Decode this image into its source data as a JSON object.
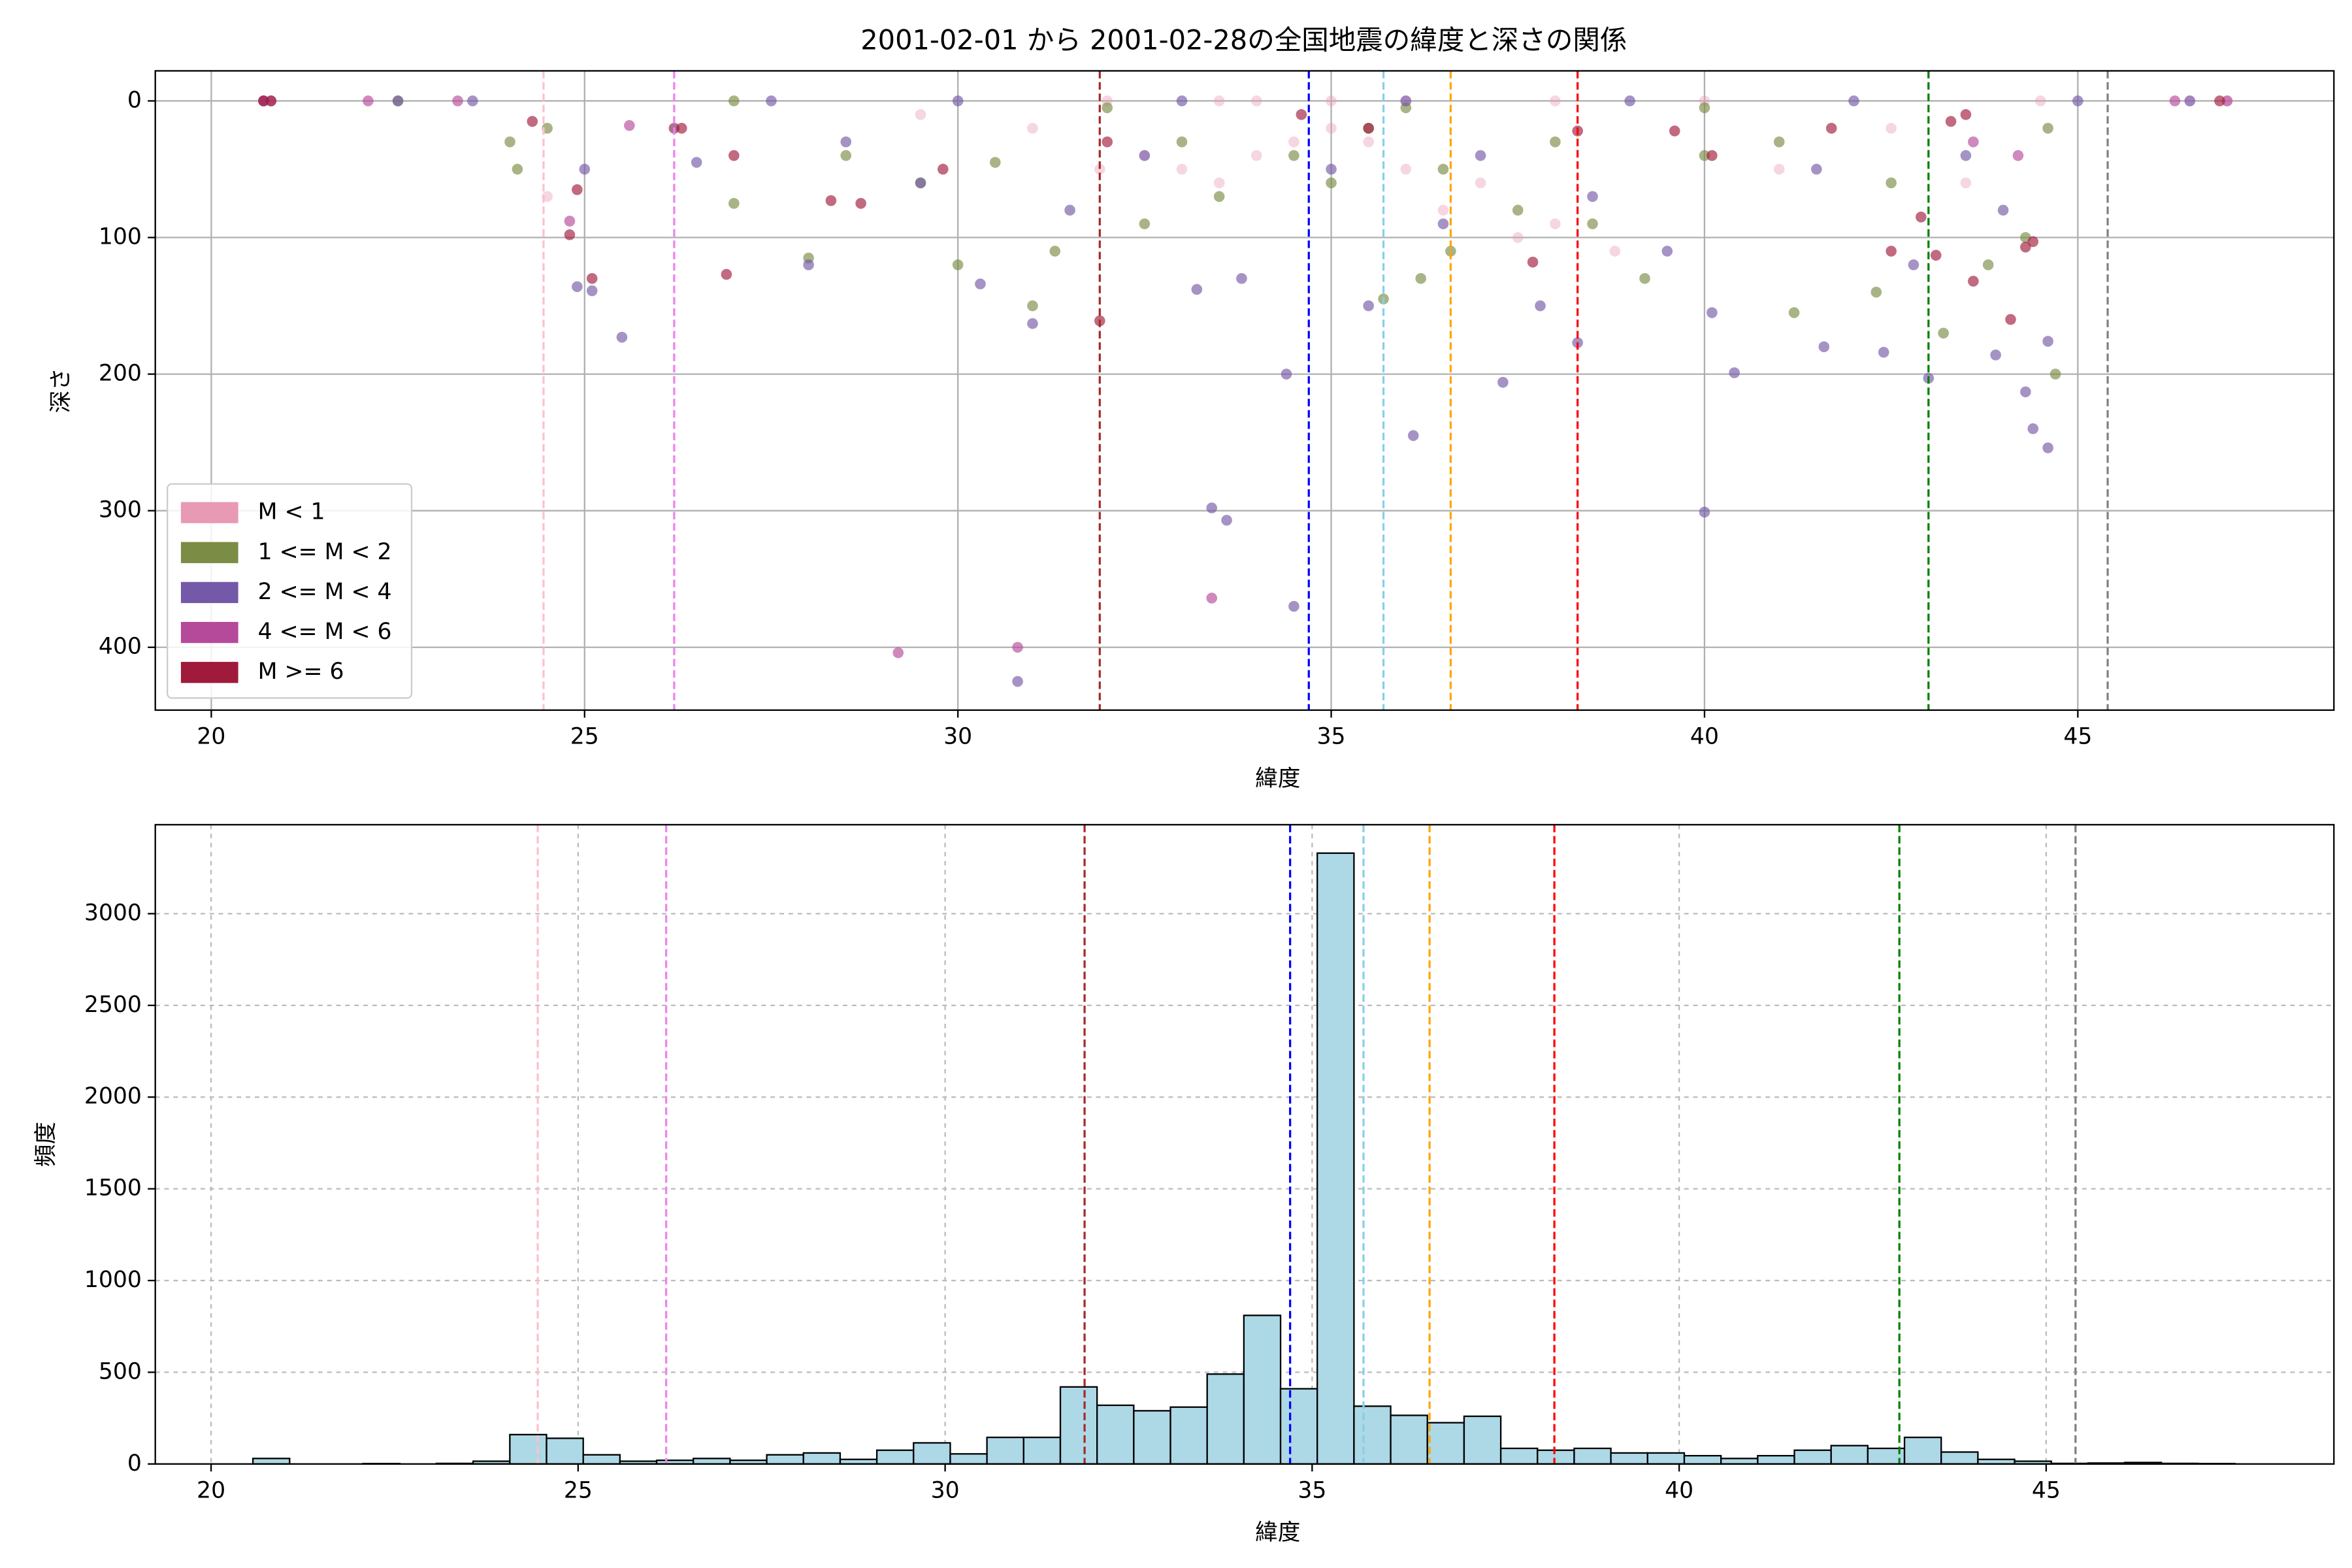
{
  "chart_data": [
    {
      "type": "scatter",
      "title": "2001-02-01 から 2001-02-28の全国地震の緯度と深さの関係",
      "x_label": "緯度",
      "y_label": "深さ",
      "xlim": [
        19.25,
        48.43
      ],
      "ylim": [
        446,
        -22
      ],
      "xticks": [
        20,
        25,
        30,
        35,
        40,
        45
      ],
      "yticks": [
        0,
        100,
        200,
        300,
        400
      ],
      "grid": true,
      "grid_style": "solid",
      "legend": "lower left",
      "vlines": [
        {
          "x": 24.45,
          "color": "pink"
        },
        {
          "x": 26.2,
          "color": "violet"
        },
        {
          "x": 31.9,
          "color": "brown"
        },
        {
          "x": 34.7,
          "color": "blue"
        },
        {
          "x": 35.7,
          "color": "skyblue"
        },
        {
          "x": 36.6,
          "color": "orange"
        },
        {
          "x": 38.3,
          "color": "red"
        },
        {
          "x": 43.0,
          "color": "green"
        },
        {
          "x": 45.4,
          "color": "gray"
        }
      ],
      "series": [
        {
          "name": "M < 1",
          "color": "#e899b4",
          "x": [
            31.9,
            32.5,
            33,
            33.5,
            34,
            34.5,
            35,
            35.5,
            36,
            36.5,
            37,
            37.5,
            38,
            38.8,
            33.5,
            34,
            35,
            36,
            32,
            38,
            40,
            44.5,
            46.5,
            47,
            24.5,
            41,
            42.5,
            43.5,
            31,
            29.5
          ],
          "values": [
            50,
            40,
            50,
            60,
            40,
            30,
            20,
            30,
            50,
            80,
            60,
            100,
            90,
            110,
            0,
            0,
            0,
            0,
            0,
            0,
            0,
            0,
            0,
            0,
            70,
            50,
            20,
            60,
            20,
            10
          ]
        },
        {
          "name": "1 <= M < 2",
          "color": "#7b8c45",
          "x": [
            24,
            24.5,
            26.2,
            27,
            28,
            29.5,
            30,
            31,
            31.3,
            32.5,
            33.5,
            35,
            35.7,
            36.2,
            36.6,
            37.5,
            38.5,
            39.2,
            40,
            41.2,
            42.3,
            43.2,
            43.8,
            44.3,
            44.6,
            22.5,
            27,
            32,
            36,
            40,
            33,
            34.5,
            35.5,
            36.5,
            38,
            41,
            42.5,
            28.5,
            30.5,
            24.1,
            44.7
          ],
          "values": [
            30,
            20,
            20,
            75,
            115,
            60,
            120,
            150,
            110,
            90,
            70,
            60,
            145,
            130,
            110,
            80,
            90,
            130,
            40,
            155,
            140,
            170,
            120,
            100,
            20,
            0,
            0,
            5,
            5,
            5,
            30,
            40,
            20,
            50,
            30,
            30,
            60,
            40,
            45,
            50,
            200
          ]
        },
        {
          "name": "2 <= M < 4",
          "color": "#7459a8",
          "x": [
            34.4,
            34.5,
            33.4,
            33.6,
            30.8,
            40,
            36.1,
            44.6,
            44.4,
            44.3,
            44.6,
            43.9,
            25.5,
            24.9,
            25.1,
            31,
            30.3,
            33.2,
            35.5,
            37.3,
            38.3,
            40.1,
            40.4,
            41.6,
            42.4,
            43,
            20.7,
            22.5,
            23.5,
            27.5,
            30,
            33,
            36,
            39,
            42,
            45,
            46.5,
            28.5,
            29.5,
            32.5,
            35,
            37,
            38.5,
            41.5,
            43.5,
            25,
            26.5,
            28,
            31.5,
            33.8,
            36.5,
            37.8,
            39.5,
            42.8,
            44
          ],
          "values": [
            200,
            370,
            298,
            307,
            425,
            301,
            245,
            254,
            240,
            213,
            176,
            186,
            173,
            136,
            139,
            163,
            134,
            138,
            150,
            206,
            177,
            155,
            199,
            180,
            184,
            203,
            0,
            0,
            0,
            0,
            0,
            0,
            0,
            0,
            0,
            0,
            0,
            30,
            60,
            40,
            50,
            40,
            70,
            50,
            40,
            50,
            45,
            120,
            80,
            130,
            90,
            150,
            110,
            120,
            80
          ]
        },
        {
          "name": "4 <= M < 6",
          "color": "#b5499a",
          "x": [
            29.2,
            30.8,
            33.4,
            20.7,
            20.8,
            22.1,
            24.8,
            25.6,
            26.2,
            23.3,
            47,
            46.3,
            43.6,
            44.2
          ],
          "values": [
            404,
            400,
            364,
            0,
            0,
            0,
            88,
            18,
            20,
            0,
            0,
            0,
            30,
            40
          ]
        },
        {
          "name": "M >= 6",
          "color": "#a01a3c",
          "x": [
            26.9,
            25.1,
            24.8,
            24.9,
            28.3,
            28.7,
            29.8,
            31.9,
            37.7,
            38.3,
            39.6,
            40.1,
            42.9,
            43.3,
            43.6,
            44.1,
            44.3,
            44.4,
            42.5,
            43.1,
            20.7,
            20.8,
            46.9,
            24.3,
            26.3,
            27,
            32,
            34.6,
            35.5,
            41.7,
            43.5
          ],
          "values": [
            127,
            130,
            98,
            65,
            73,
            75,
            50,
            161,
            118,
            22,
            22,
            40,
            85,
            15,
            132,
            160,
            107,
            103,
            110,
            113,
            0,
            0,
            0,
            15,
            20,
            40,
            30,
            10,
            20,
            20,
            10
          ]
        }
      ]
    },
    {
      "type": "histogram",
      "x_label": "緯度",
      "y_label": "頻度",
      "xlim": [
        19.24,
        48.92
      ],
      "ylim": [
        0,
        3485
      ],
      "xticks": [
        20,
        25,
        30,
        35,
        40,
        45
      ],
      "yticks": [
        0,
        500,
        1000,
        1500,
        2000,
        2500,
        3000
      ],
      "grid": true,
      "grid_style": "dashed",
      "color": "#add8e6",
      "edgecolor": "#000000",
      "vlines": [
        {
          "x": 24.45,
          "color": "pink"
        },
        {
          "x": 26.2,
          "color": "violet"
        },
        {
          "x": 31.9,
          "color": "brown"
        },
        {
          "x": 34.7,
          "color": "blue"
        },
        {
          "x": 35.7,
          "color": "skyblue"
        },
        {
          "x": 36.6,
          "color": "orange"
        },
        {
          "x": 38.3,
          "color": "red"
        },
        {
          "x": 43.0,
          "color": "green"
        },
        {
          "x": 45.4,
          "color": "gray"
        }
      ],
      "bins": [
        20.57,
        21.07,
        21.57,
        22.07,
        22.57,
        23.07,
        23.57,
        24.07,
        24.57,
        25.07,
        25.57,
        26.07,
        26.57,
        27.07,
        27.57,
        28.07,
        28.57,
        29.07,
        29.57,
        30.07,
        30.57,
        31.07,
        31.57,
        32.07,
        32.57,
        33.07,
        33.57,
        34.07,
        34.57,
        35.07,
        35.57,
        36.07,
        36.57,
        37.07,
        37.57,
        38.07,
        38.57,
        39.07,
        39.57,
        40.07,
        40.57,
        41.07,
        41.57,
        42.07,
        42.57,
        43.07,
        43.57,
        44.07,
        44.57,
        45.07,
        45.57,
        46.07,
        46.57,
        47.07,
        47.57
      ],
      "values": [
        30,
        0,
        0,
        2,
        0,
        3,
        15,
        160,
        140,
        50,
        15,
        20,
        30,
        20,
        50,
        60,
        25,
        75,
        115,
        55,
        145,
        145,
        420,
        320,
        290,
        310,
        490,
        810,
        410,
        3330,
        315,
        265,
        225,
        260,
        85,
        75,
        85,
        60,
        60,
        45,
        30,
        45,
        75,
        100,
        85,
        145,
        65,
        25,
        15,
        3,
        5,
        8,
        3,
        2
      ]
    }
  ]
}
